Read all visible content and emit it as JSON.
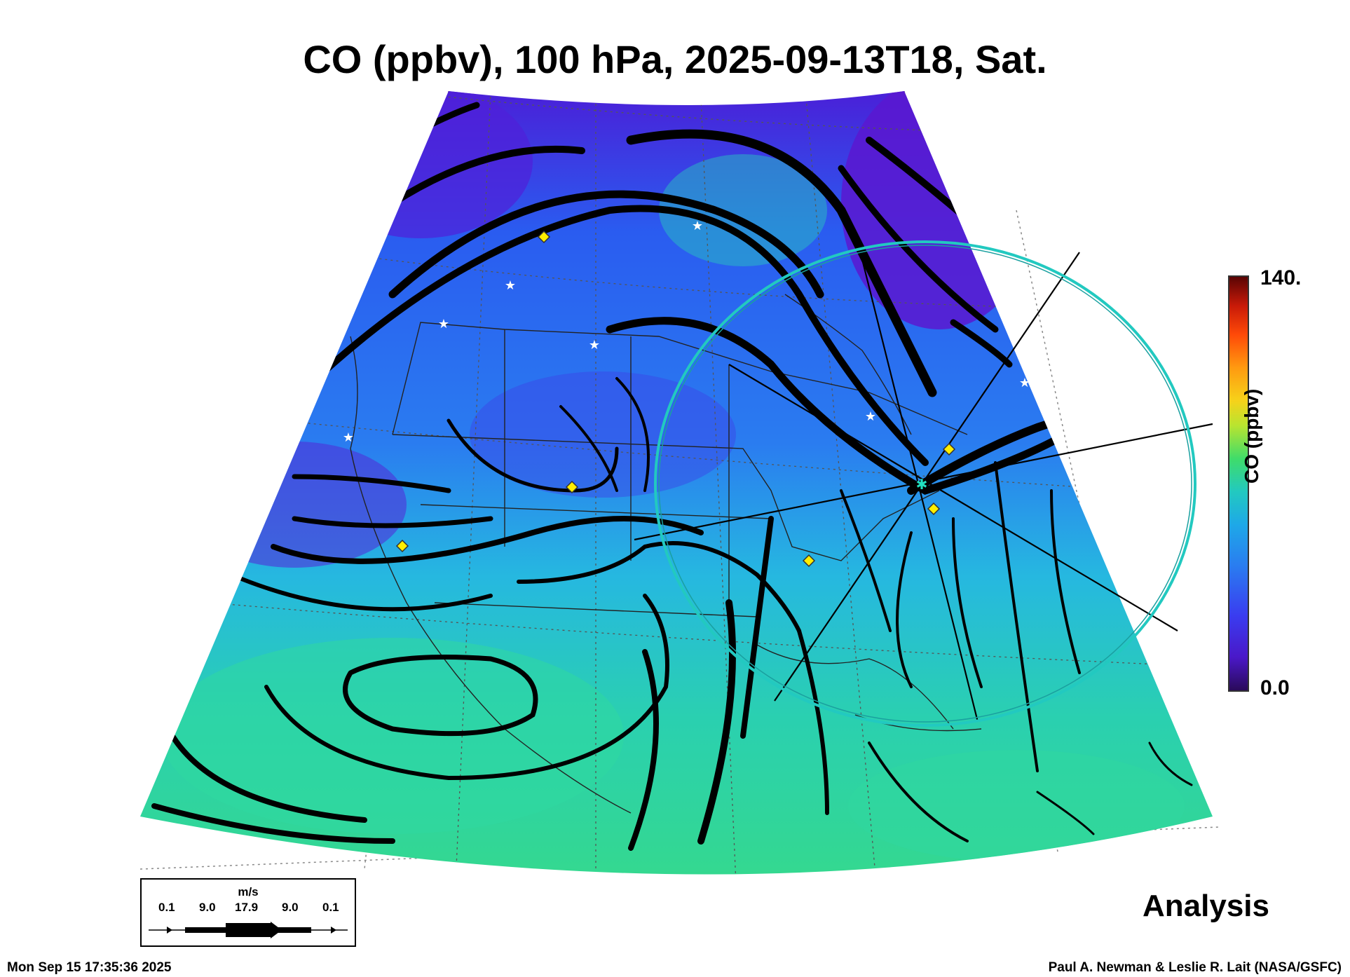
{
  "title": "CO (ppbv), 100 hPa, 2025-09-13T18, Sat.",
  "colorbar": {
    "max_label": "140.",
    "min_label": "0.0",
    "label": "CO (ppbv)",
    "range": [
      0,
      140
    ]
  },
  "product_label": "Analysis",
  "wind_legend": {
    "unit": "m/s",
    "values": [
      "0.1",
      "9.0",
      "17.9",
      "9.0",
      "0.1"
    ]
  },
  "timestamp": "Mon Sep 15 17:35:36 2025",
  "credit": "Paul A. Newman & Leslie R. Lait (NASA/GSFC)",
  "colors": {
    "low": "#4a18c8",
    "mid": "#2a7cf0",
    "high": "#3fdc6a",
    "circle": "#22c9c0"
  }
}
